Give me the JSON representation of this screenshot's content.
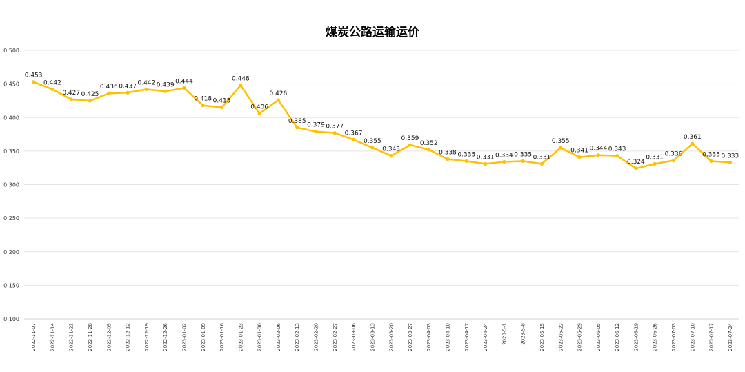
{
  "chart_data": {
    "type": "line",
    "title": "煤炭公路运输运价",
    "xlabel": "",
    "ylabel": "",
    "ylim": [
      0.1,
      0.5
    ],
    "yticks": [
      "0.100",
      "0.150",
      "0.200",
      "0.250",
      "0.300",
      "0.350",
      "0.400",
      "0.450",
      "0.500"
    ],
    "grid": true,
    "legend": "none",
    "line_color": "#FFC000",
    "categories": [
      "2022-11-07",
      "2022-11-14",
      "2022-11-21",
      "2022-11-28",
      "2022-12-05",
      "2022-12-12",
      "2022-12-19",
      "2022-12-26",
      "2023-01-02",
      "2023-01-09",
      "2023-01-16",
      "2023-01-23",
      "2023-01-30",
      "2023-02-06",
      "2023-02-13",
      "2023-02-20",
      "2023-02-27",
      "2023-03-06",
      "2023-03-13",
      "2023-03-20",
      "2023-03-27",
      "2023-04-03",
      "2023-04-10",
      "2023-04-17",
      "2023-04-24",
      "2023-5-1",
      "2023-5-8",
      "2023-05-15",
      "2023-05-22",
      "2023-05-29",
      "2023-06-05",
      "2023-06-12",
      "2023-06-19",
      "2023-06-26",
      "2023-07-03",
      "2023-07-10",
      "2023-07-17",
      "2023-07-24"
    ],
    "values": [
      0.453,
      0.442,
      0.427,
      0.425,
      0.436,
      0.437,
      0.442,
      0.439,
      0.444,
      0.418,
      0.415,
      0.448,
      0.406,
      0.426,
      0.385,
      0.379,
      0.377,
      0.367,
      0.355,
      0.343,
      0.359,
      0.352,
      0.338,
      0.335,
      0.331,
      0.334,
      0.335,
      0.331,
      0.355,
      0.341,
      0.344,
      0.343,
      0.324,
      0.331,
      0.336,
      0.361,
      0.335,
      0.333
    ],
    "labels": [
      "0.453",
      "0.442",
      "0.427",
      "0.425",
      "0.436",
      "0.437",
      "0.442",
      "0.439",
      "0.444",
      "0.418",
      "0.415",
      "0.448",
      "0.406",
      "0.426",
      "0.385",
      "0.379",
      "0.377",
      "0.367",
      "0.355",
      "0.343",
      "0.359",
      "0.352",
      "0.338",
      "0.335",
      "0.331",
      "0.334",
      "0.335",
      "0.331",
      "0.355",
      "0.341",
      "0.344",
      "0.343",
      "0.324",
      "0.331",
      "0.336",
      "0.361",
      "0.335",
      "0.333"
    ]
  }
}
